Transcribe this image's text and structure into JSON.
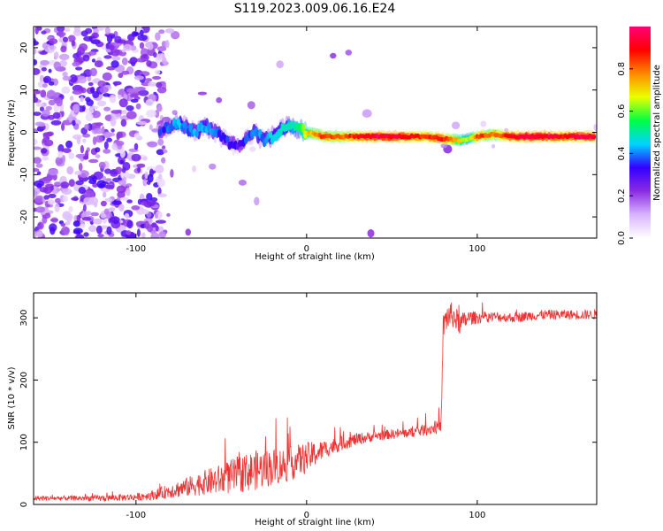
{
  "figure": {
    "title": "S119.2023.009.06.16.E24"
  },
  "chart_data": [
    {
      "type": "heatmap",
      "title": "",
      "xlabel": "Height of straight line (km)",
      "ylabel": "Frequency (Hz)",
      "xlim": [
        -160,
        170
      ],
      "ylim": [
        -25,
        25
      ],
      "x_ticks": [
        -100,
        0,
        100
      ],
      "y_ticks": [
        -20,
        -10,
        0,
        10,
        20
      ],
      "colorbar": {
        "label": "Normalized spectral amplitude",
        "range": [
          0,
          1
        ],
        "ticks": [
          "0.0",
          "0.2",
          "0.4",
          "0.6",
          "0.8"
        ],
        "colors": [
          "#ffffff",
          "#d9b3ff",
          "#8a2be2",
          "#3300ff",
          "#00d4ff",
          "#00ff44",
          "#eaff00",
          "#ff8800",
          "#ff0000",
          "#ff0077"
        ]
      },
      "ridge": {
        "description_points_x": [
          -85,
          -80,
          -75,
          -70,
          -65,
          -60,
          -55,
          -50,
          -45,
          -40,
          -35,
          -30,
          -25,
          -20,
          -15,
          -10,
          -5,
          0,
          10,
          20,
          30,
          40,
          50,
          60,
          70,
          80,
          90,
          95,
          100,
          110,
          120,
          130,
          140,
          150,
          160,
          168
        ],
        "frequency_hz": [
          0.5,
          1.5,
          2.0,
          1.0,
          0.0,
          1.5,
          0.5,
          -1.0,
          -2.5,
          -3.0,
          -1.5,
          0.0,
          -2.0,
          -1.0,
          0.5,
          2.0,
          1.0,
          0.0,
          -1.0,
          -1.0,
          -1.0,
          -1.0,
          -1.0,
          -1.0,
          -1.0,
          -1.5,
          -2.0,
          -1.5,
          -1.0,
          -0.5,
          -1.0,
          -1.0,
          -1.0,
          -1.0,
          -1.0,
          -1.0
        ],
        "amplitude": [
          0.35,
          0.4,
          0.45,
          0.4,
          0.4,
          0.45,
          0.4,
          0.35,
          0.35,
          0.3,
          0.35,
          0.4,
          0.4,
          0.45,
          0.45,
          0.5,
          0.55,
          0.7,
          0.85,
          0.8,
          0.9,
          0.95,
          0.95,
          0.9,
          0.85,
          0.9,
          0.7,
          0.6,
          0.85,
          0.8,
          0.9,
          0.95,
          0.95,
          0.9,
          0.95,
          0.95
        ]
      }
    },
    {
      "type": "line",
      "title": "",
      "xlabel": "Height of straight line (km)",
      "ylabel": "SNR (10 * v/v)",
      "xlim": [
        -160,
        170
      ],
      "ylim": [
        0,
        340
      ],
      "x_ticks": [
        -100,
        0,
        100
      ],
      "y_ticks": [
        0,
        100,
        200,
        300
      ],
      "color": "#ee3333",
      "series": [
        {
          "x": [
            -160,
            -140,
            -120,
            -100,
            -90,
            -80,
            -70,
            -60,
            -50,
            -40,
            -30,
            -20,
            -10,
            0,
            10,
            20,
            30,
            40,
            50,
            60,
            70,
            78,
            79,
            80,
            82,
            85,
            90,
            95,
            100,
            110,
            120,
            130,
            140,
            150,
            160,
            170
          ],
          "values": [
            10,
            10,
            10,
            12,
            15,
            22,
            28,
            35,
            40,
            48,
            55,
            60,
            65,
            75,
            88,
            98,
            105,
            110,
            113,
            115,
            120,
            125,
            130,
            285,
            300,
            305,
            290,
            300,
            300,
            302,
            300,
            303,
            305,
            305,
            305,
            305
          ],
          "noise": [
            4,
            4,
            5,
            6,
            8,
            12,
            16,
            20,
            25,
            30,
            32,
            30,
            28,
            25,
            15,
            12,
            10,
            8,
            8,
            8,
            10,
            10,
            10,
            20,
            25,
            20,
            18,
            12,
            10,
            8,
            8,
            8,
            8,
            8,
            8,
            8
          ]
        }
      ]
    }
  ]
}
